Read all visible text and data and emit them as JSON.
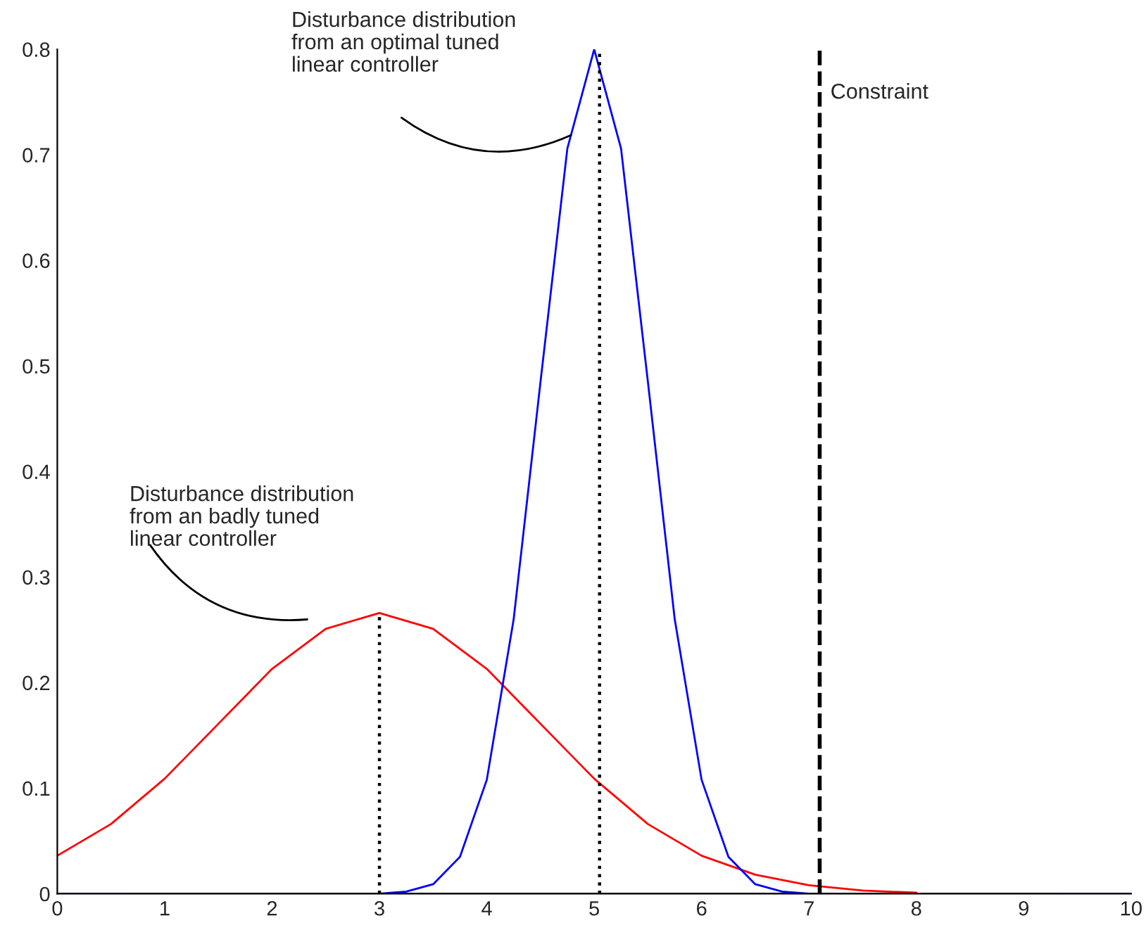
{
  "chart_data": {
    "type": "line",
    "xlim": [
      0,
      10
    ],
    "ylim": [
      0,
      0.8
    ],
    "xticks": [
      0,
      1,
      2,
      3,
      4,
      5,
      6,
      7,
      8,
      9,
      10
    ],
    "yticks": [
      0,
      0.1,
      0.2,
      0.3,
      0.4,
      0.5,
      0.6,
      0.7,
      0.8
    ],
    "grid": false,
    "legend": false,
    "marker": "none",
    "series": [
      {
        "color": "#ff0000",
        "x": [
          0,
          0.5,
          1,
          1.5,
          2,
          2.5,
          3,
          3.5,
          4,
          4.5,
          5,
          5.5,
          6,
          6.5,
          7,
          7.5,
          8
        ],
        "values": [
          0.036,
          0.066,
          0.109,
          0.161,
          0.213,
          0.251,
          0.266,
          0.251,
          0.213,
          0.161,
          0.109,
          0.066,
          0.036,
          0.018,
          0.008,
          0.003,
          0.001
        ]
      },
      {
        "color": "#0000ff",
        "x": [
          0,
          3,
          3.25,
          3.5,
          3.75,
          4,
          4.25,
          4.5,
          4.75,
          5,
          5.25,
          5.5,
          5.75,
          6,
          6.25,
          6.5,
          6.75,
          7,
          10
        ],
        "values": [
          0,
          0,
          0.002,
          0.009,
          0.035,
          0.108,
          0.26,
          0.485,
          0.706,
          0.8,
          0.706,
          0.485,
          0.26,
          0.108,
          0.035,
          0.009,
          0.002,
          0,
          0
        ]
      },
      {
        "color": "#000000",
        "x": [
          0.65,
          9.35
        ],
        "values": [
          0,
          0
        ]
      },
      {
        "color": "#000000",
        "line_style": "dotted",
        "x": [
          3,
          3
        ],
        "values": [
          0,
          0.266
        ]
      },
      {
        "color": "#000000",
        "line_style": "dotted",
        "x": [
          5.05,
          5.05
        ],
        "values": [
          0,
          0.8
        ]
      }
    ],
    "ref_lines": [
      {
        "axis": "x",
        "value": 7.1,
        "label": "Constraint",
        "color": "#000000",
        "line_style": "dashed"
      }
    ],
    "annotations": [
      "Disturbance distribution\nfrom an optimal tuned\nlinear controller",
      "Disturbance distribution\nfrom an badly tuned\nlinear controller"
    ]
  }
}
